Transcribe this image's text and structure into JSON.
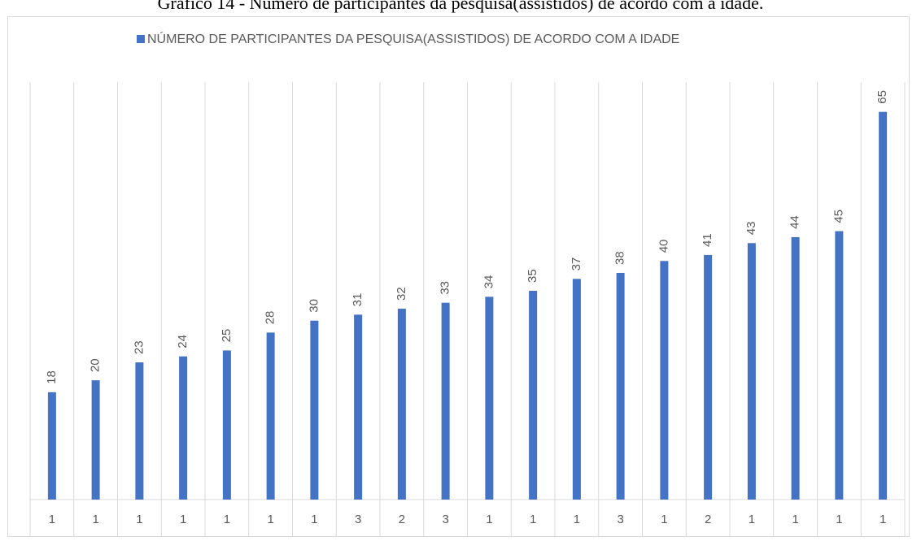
{
  "chart_data": {
    "type": "bar",
    "title": "Gráfico 14 - Número de participantes da pesquisa(assistidos) de acordo com a idade.",
    "legend": "NÚMERO DE PARTICIPANTES DA PESQUISA(ASSISTIDOS) DE ACORDO COM A IDADE",
    "categories": [
      1,
      1,
      1,
      1,
      1,
      1,
      1,
      3,
      2,
      3,
      1,
      1,
      1,
      3,
      1,
      2,
      1,
      1,
      1,
      1
    ],
    "values": [
      18,
      20,
      23,
      24,
      25,
      28,
      30,
      31,
      32,
      33,
      34,
      35,
      37,
      38,
      40,
      41,
      43,
      44,
      45,
      65
    ],
    "color": "#4472c4",
    "ylim": [
      0,
      70
    ]
  }
}
